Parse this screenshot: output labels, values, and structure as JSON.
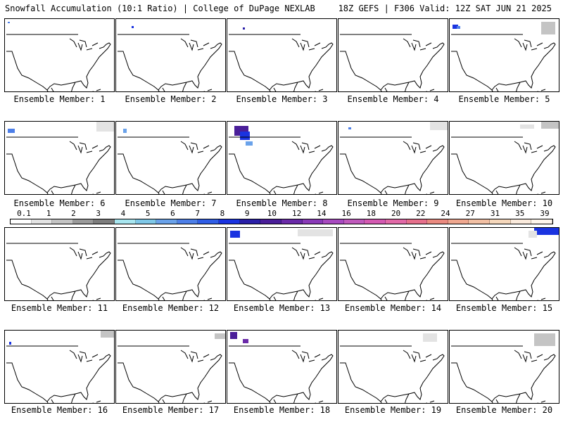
{
  "header": {
    "left": "Snowfall Accumulation (10:1 Ratio) | College of DuPage NEXLAB",
    "right": "18Z GEFS | F306 Valid: 12Z SAT JUN 21 2025"
  },
  "colorbar": {
    "labels": [
      "0.1",
      "1",
      "2",
      "3",
      "4",
      "5",
      "6",
      "7",
      "8",
      "9",
      "10",
      "12",
      "14",
      "16",
      "18",
      "20",
      "22",
      "24",
      "27",
      "31",
      "35",
      "39"
    ],
    "colors": [
      "#ffffff",
      "#e3e3e3",
      "#c4c4c4",
      "#9a9a9a",
      "#7d7d7d",
      "#a8e6f0",
      "#7fc8e8",
      "#6aa2ea",
      "#4d7fe8",
      "#2f5de6",
      "#1a33e0",
      "#2a1fa8",
      "#4a1e99",
      "#6a2aa8",
      "#8a3ab8",
      "#a84ac0",
      "#c05abc",
      "#d45ab2",
      "#e26aa8",
      "#e6708c",
      "#ea8a80",
      "#f0a890",
      "#f2c0a4",
      "#f6d8bc",
      "#faeadc",
      "#fff6ec"
    ]
  },
  "members": [
    {
      "caption": "Ensemble Member: 1"
    },
    {
      "caption": "Ensemble Member: 2"
    },
    {
      "caption": "Ensemble Member: 3"
    },
    {
      "caption": "Ensemble Member: 4"
    },
    {
      "caption": "Ensemble Member: 5"
    },
    {
      "caption": "Ensemble Member: 6"
    },
    {
      "caption": "Ensemble Member: 7"
    },
    {
      "caption": "Ensemble Member: 8"
    },
    {
      "caption": "Ensemble Member: 9"
    },
    {
      "caption": "Ensemble Member: 10"
    },
    {
      "caption": "Ensemble Member: 11"
    },
    {
      "caption": "Ensemble Member: 12"
    },
    {
      "caption": "Ensemble Member: 13"
    },
    {
      "caption": "Ensemble Member: 14"
    },
    {
      "caption": "Ensemble Member: 15"
    },
    {
      "caption": "Ensemble Member: 16"
    },
    {
      "caption": "Ensemble Member: 17"
    },
    {
      "caption": "Ensemble Member: 18"
    },
    {
      "caption": "Ensemble Member: 19"
    },
    {
      "caption": "Ensemble Member: 20"
    }
  ]
}
